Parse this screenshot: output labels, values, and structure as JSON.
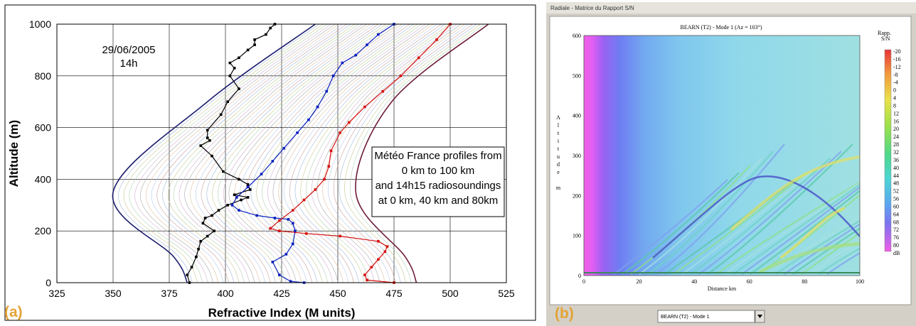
{
  "panel_a": {
    "letter": "(a)",
    "date": "29/06/2005",
    "time": "14h",
    "note_lines": [
      "Météo France profiles from",
      "0 km to 100 km",
      "and 14h15 radiosoundings",
      "at 0 km, 40 km and 80km"
    ],
    "colors": {
      "envelope_left": "#1c1c6e",
      "envelope_right": "#6e1c3a",
      "sounding_0km": "#000000",
      "sounding_40km": "#0a1fbf",
      "sounding_80km": "#d41010",
      "panel_letter": "#e3a335"
    }
  },
  "panel_b": {
    "letter": "(b)",
    "window_title": "Radiale - Matrice du Rapport S/N",
    "plot_title": "BEARN (T2) - Mode 1 (Az = 103°)",
    "y_axis_letters": [
      "A",
      "l",
      "t",
      "i",
      "t",
      "u",
      "d",
      "e",
      "",
      "m"
    ],
    "colorbar_title": [
      "Rapp.",
      "S/N"
    ],
    "colorbar_ticks": [
      "-20",
      "-16",
      "-12",
      "-8",
      "-4",
      "0",
      "4",
      "8",
      "12",
      "16",
      "20",
      "24",
      "28",
      "32",
      "36",
      "40",
      "44",
      "48",
      "52",
      "56",
      "60",
      "64",
      "68",
      "72",
      "76",
      "80",
      "dB"
    ],
    "combo_value": "BEARN (T2) - Mode 1"
  },
  "chart_data": [
    {
      "type": "line",
      "title": "",
      "xlabel": "Refractive Index (M units)",
      "ylabel": "Altitude (m)",
      "xlim": [
        325,
        525
      ],
      "ylim": [
        0,
        1000
      ],
      "xticks": [
        "325",
        "350",
        "375",
        "400",
        "425",
        "450",
        "475",
        "500",
        "525"
      ],
      "yticks": [
        "0",
        "200",
        "400",
        "600",
        "800",
        "1000"
      ],
      "grid": true,
      "series": [
        {
          "name": "",
          "role": "envelope-left",
          "x": [
            383,
            377,
            350,
            392,
            440
          ],
          "y": [
            0,
            100,
            350,
            700,
            1000
          ]
        },
        {
          "name": "",
          "role": "envelope-right",
          "x": [
            485,
            480,
            458,
            474,
            517
          ],
          "y": [
            0,
            100,
            350,
            700,
            1000
          ]
        },
        {
          "name": "",
          "role": "radiosounding-0km",
          "x": [
            384,
            383,
            385,
            387,
            388,
            389,
            392,
            395,
            390,
            391,
            394,
            397,
            401,
            407,
            410,
            404,
            411,
            410,
            406,
            399,
            394,
            389,
            393,
            392,
            392,
            398,
            401,
            406,
            402,
            404,
            402,
            406,
            410,
            413,
            413,
            418,
            420,
            422
          ],
          "y": [
            0,
            30,
            60,
            100,
            130,
            160,
            180,
            200,
            230,
            250,
            260,
            280,
            300,
            320,
            330,
            340,
            360,
            380,
            400,
            430,
            490,
            530,
            550,
            560,
            590,
            650,
            700,
            750,
            800,
            830,
            850,
            870,
            900,
            920,
            940,
            960,
            985,
            1000
          ]
        },
        {
          "name": "",
          "role": "radiosounding-40km",
          "x": [
            435,
            429,
            424,
            421,
            427,
            430,
            431,
            430,
            428,
            422,
            414,
            406,
            403,
            405,
            410,
            416,
            421,
            426,
            432,
            437,
            441,
            445,
            448,
            452,
            458,
            463,
            468,
            475
          ],
          "y": [
            0,
            5,
            30,
            80,
            110,
            150,
            200,
            230,
            245,
            250,
            260,
            280,
            300,
            330,
            370,
            420,
            470,
            520,
            580,
            630,
            680,
            740,
            800,
            850,
            880,
            920,
            960,
            1000
          ]
        },
        {
          "name": "",
          "role": "radiosounding-80km",
          "x": [
            475,
            463,
            462,
            465,
            468,
            471,
            472,
            468,
            451,
            436,
            424,
            420,
            424,
            430,
            435,
            440,
            444,
            446,
            447,
            451,
            455,
            462,
            470,
            478,
            486,
            494,
            500
          ],
          "y": [
            0,
            10,
            30,
            60,
            90,
            120,
            140,
            160,
            180,
            190,
            200,
            210,
            240,
            280,
            320,
            360,
            400,
            450,
            510,
            580,
            620,
            680,
            740,
            800,
            870,
            940,
            1000
          ]
        }
      ]
    },
    {
      "type": "heatmap",
      "title": "BEARN (T2) - Mode 1 (Az = 103°)",
      "xlabel": "Distance km",
      "ylabel": "Altitude m",
      "xlim": [
        0,
        100
      ],
      "ylim": [
        0,
        600
      ],
      "xticks": [
        "0",
        "20",
        "40",
        "60",
        "80",
        "100"
      ],
      "yticks": [
        "0",
        "100",
        "200",
        "300",
        "400",
        "500",
        "600"
      ],
      "colorbar": {
        "label": "Rapp. S/N",
        "unit": "dB",
        "min": -20,
        "max": 80
      }
    }
  ]
}
